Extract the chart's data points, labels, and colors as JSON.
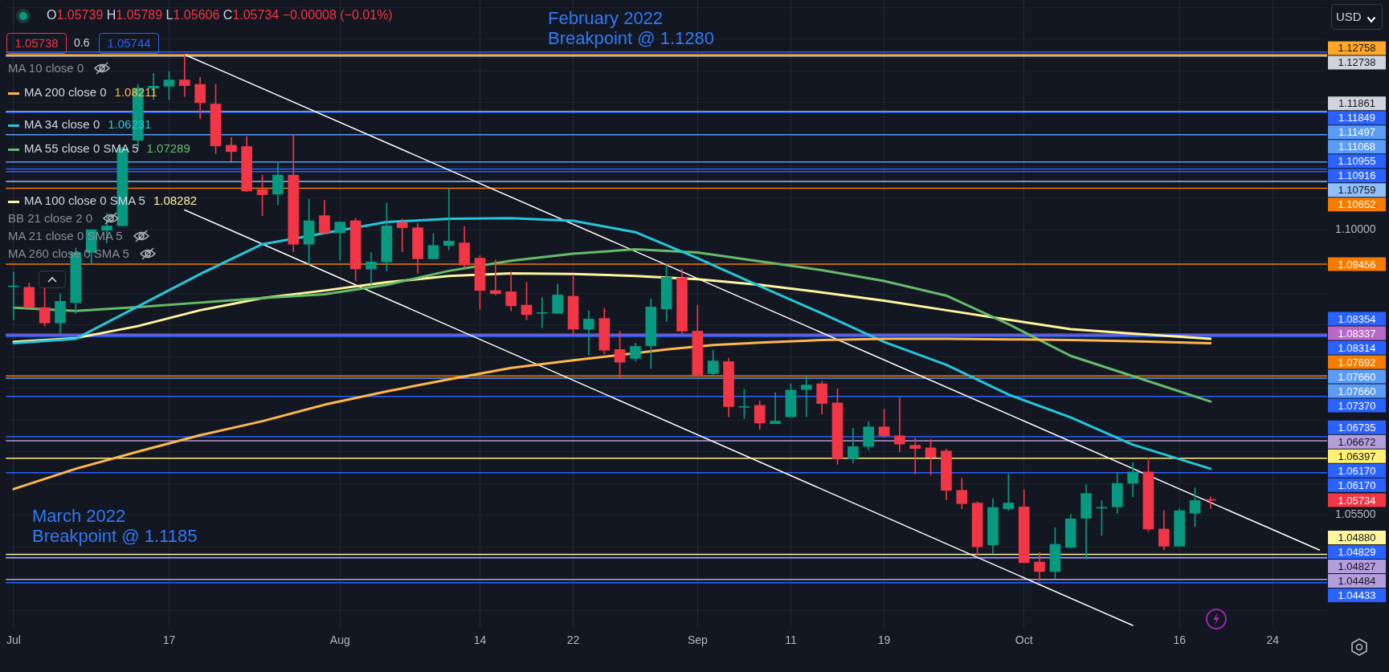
{
  "chart_data": {
    "type": "candlestick",
    "subtitle": "O1.05739 H1.05789 L1.05606 C1.05734 −0.00008 (−0.01%)",
    "categories": [
      "Jul",
      null,
      null,
      null,
      null,
      null,
      null,
      null,
      null,
      null,
      "17",
      null,
      null,
      null,
      null,
      null,
      null,
      null,
      null,
      null,
      null,
      "Aug",
      null,
      null,
      null,
      null,
      null,
      null,
      null,
      null,
      "14",
      null,
      null,
      null,
      null,
      null,
      "22",
      null,
      null,
      null,
      null,
      null,
      null,
      null,
      "Sep",
      null,
      null,
      null,
      null,
      null,
      "11",
      null,
      null,
      null,
      null,
      null,
      "19",
      null,
      null,
      null,
      null,
      null,
      null,
      null,
      null,
      "Oct",
      null,
      null,
      null,
      null,
      null,
      null,
      null,
      null,
      null,
      "16",
      null,
      null,
      null,
      null,
      null,
      "24",
      null,
      null,
      null
    ],
    "ohlc": [
      [
        1.091,
        1.0933,
        1.0858,
        1.0911
      ],
      [
        1.0909,
        1.0916,
        1.0877,
        1.0877
      ],
      [
        1.0877,
        1.0908,
        1.0848,
        1.0853
      ],
      [
        1.0853,
        1.0899,
        1.0836,
        1.0887
      ],
      [
        1.0885,
        1.0971,
        1.0868,
        1.0964
      ],
      [
        1.0964,
        1.1,
        1.0945,
        1.1
      ],
      [
        1.0999,
        1.1026,
        1.0979,
        1.1006
      ],
      [
        1.1006,
        1.113,
        1.1006,
        1.1128
      ],
      [
        1.1141,
        1.1229,
        1.1128,
        1.1223
      ],
      [
        1.1223,
        1.1246,
        1.1205,
        1.1226
      ],
      [
        1.1226,
        1.1249,
        1.1205,
        1.1236
      ],
      [
        1.1236,
        1.1276,
        1.121,
        1.1227
      ],
      [
        1.1229,
        1.124,
        1.1175,
        1.12
      ],
      [
        1.1198,
        1.1229,
        1.112,
        1.1132
      ],
      [
        1.1133,
        1.1145,
        1.1108,
        1.1123
      ],
      [
        1.1131,
        1.1147,
        1.106,
        1.1061
      ],
      [
        1.1063,
        1.1086,
        1.1022,
        1.1055
      ],
      [
        1.1056,
        1.1107,
        1.1039,
        1.1086
      ],
      [
        1.1086,
        1.115,
        1.0965,
        1.0977
      ],
      [
        1.0977,
        1.1048,
        1.0945,
        1.1014
      ],
      [
        1.1022,
        1.1046,
        1.0993,
        1.0995
      ],
      [
        1.0995,
        1.1012,
        1.0952,
        1.1012
      ],
      [
        1.1014,
        1.1018,
        1.0919,
        1.0938
      ],
      [
        1.0938,
        1.0964,
        1.0914,
        1.0949
      ],
      [
        1.0949,
        1.1042,
        1.0935,
        1.1006
      ],
      [
        1.1011,
        1.1017,
        1.0965,
        1.1003
      ],
      [
        1.1003,
        1.101,
        1.0931,
        1.0954
      ],
      [
        1.0954,
        1.0994,
        1.0954,
        1.0975
      ],
      [
        1.0975,
        1.1065,
        1.0968,
        1.0982
      ],
      [
        1.0979,
        1.1005,
        1.094,
        1.0944
      ],
      [
        1.0955,
        1.0959,
        1.0874,
        1.0904
      ],
      [
        1.0904,
        1.0952,
        1.0897,
        1.0899
      ],
      [
        1.0902,
        1.0933,
        1.0872,
        1.088
      ],
      [
        1.0881,
        1.0917,
        1.0858,
        1.0866
      ],
      [
        1.0868,
        1.0893,
        1.0845,
        1.0869
      ],
      [
        1.0868,
        1.0914,
        1.0868,
        1.0897
      ],
      [
        1.0895,
        1.0929,
        1.0833,
        1.0843
      ],
      [
        1.0843,
        1.0872,
        1.0802,
        1.0859
      ],
      [
        1.086,
        1.0876,
        1.0804,
        1.081
      ],
      [
        1.0811,
        1.084,
        1.0766,
        1.0791
      ],
      [
        1.0797,
        1.0821,
        1.0793,
        1.0816
      ],
      [
        1.0817,
        1.0891,
        1.0781,
        1.0878
      ],
      [
        1.0875,
        1.0945,
        1.0855,
        1.0925
      ],
      [
        1.0924,
        1.0938,
        1.0836,
        1.084
      ],
      [
        1.084,
        1.0881,
        1.0771,
        1.0771
      ],
      [
        1.0773,
        1.081,
        1.0771,
        1.0793
      ],
      [
        1.0792,
        1.0797,
        1.0705,
        1.0721
      ],
      [
        1.072,
        1.0748,
        1.0702,
        1.0721
      ],
      [
        1.0723,
        1.073,
        1.0685,
        1.0695
      ],
      [
        1.0694,
        1.0743,
        1.0694,
        1.0698
      ],
      [
        1.0705,
        1.0757,
        1.0705,
        1.0747
      ],
      [
        1.0748,
        1.0768,
        1.0705,
        1.0755
      ],
      [
        1.0757,
        1.0761,
        1.0709,
        1.0726
      ],
      [
        1.0727,
        1.0749,
        1.063,
        1.0639
      ],
      [
        1.0639,
        1.0687,
        1.0632,
        1.0658
      ],
      [
        1.0658,
        1.0697,
        1.0653,
        1.0689
      ],
      [
        1.0689,
        1.0717,
        1.0673,
        1.0675
      ],
      [
        1.0675,
        1.0735,
        1.065,
        1.0662
      ],
      [
        1.066,
        1.0671,
        1.0615,
        1.0655
      ],
      [
        1.0656,
        1.0669,
        1.0613,
        1.0641
      ],
      [
        1.0651,
        1.0654,
        1.0574,
        1.0589
      ],
      [
        1.0589,
        1.0608,
        1.056,
        1.0568
      ],
      [
        1.0569,
        1.0571,
        1.0486,
        1.05
      ],
      [
        1.0503,
        1.0576,
        1.0489,
        1.0562
      ],
      [
        1.056,
        1.0615,
        1.0557,
        1.0569
      ],
      [
        1.0563,
        1.059,
        1.0475,
        1.0475
      ],
      [
        1.0476,
        1.0491,
        1.0446,
        1.0461
      ],
      [
        1.0461,
        1.053,
        1.045,
        1.0504
      ],
      [
        1.0499,
        1.0551,
        1.0498,
        1.0544
      ],
      [
        1.0545,
        1.0598,
        1.0481,
        1.0584
      ],
      [
        1.0561,
        1.0573,
        1.0518,
        1.0562
      ],
      [
        1.0563,
        1.0617,
        1.0553,
        1.06
      ],
      [
        1.06,
        1.0633,
        1.0579,
        1.0618
      ],
      [
        1.0618,
        1.064,
        1.0524,
        1.0528
      ],
      [
        1.0528,
        1.0557,
        1.0495,
        1.0501
      ],
      [
        1.0501,
        1.056,
        1.0501,
        1.0557
      ],
      [
        1.0553,
        1.0593,
        1.0532,
        1.0573
      ],
      [
        1.05739,
        1.05789,
        1.05606,
        1.05734
      ],
      null,
      null,
      null,
      null,
      null,
      null,
      null
    ],
    "colors": [
      "#089981",
      "#f23645",
      "#f23645",
      "#089981",
      "#089981",
      "#089981",
      "#089981",
      "#089981",
      "#089981",
      "#089981",
      "#089981",
      "#f23645",
      "#f23645",
      "#f23645",
      "#f23645",
      "#f23645",
      "#f23645",
      "#089981",
      "#f23645",
      "#089981",
      "#f23645",
      "#089981",
      "#f23645",
      "#089981",
      "#089981",
      "#f23645",
      "#f23645",
      "#089981",
      "#089981",
      "#f23645",
      "#f23645",
      "#f23645",
      "#f23645",
      "#f23645",
      "#089981",
      "#089981",
      "#f23645",
      "#089981",
      "#f23645",
      "#f23645",
      "#089981",
      "#089981",
      "#089981",
      "#f23645",
      "#f23645",
      "#089981",
      "#f23645",
      "#089981",
      "#f23645",
      "#089981",
      "#089981",
      "#089981",
      "#f23645",
      "#f23645",
      "#089981",
      "#089981",
      "#f23645",
      "#f23645",
      "#f23645",
      "#f23645",
      "#f23645",
      "#f23645",
      "#f23645",
      "#089981",
      "#089981",
      "#f23645",
      "#f23645",
      "#089981",
      "#089981",
      "#089981",
      "#089981",
      "#089981",
      "#089981",
      "#f23645",
      "#f23645",
      "#089981",
      "#089981",
      "#f23645",
      null,
      null,
      null,
      null,
      null,
      null,
      null
    ],
    "ylim": [
      1.0372,
      1.1362
    ],
    "yticks": [
      {
        "value": 1.04,
        "label": null
      },
      {
        "value": 1.045,
        "label": null
      },
      {
        "value": 1.05,
        "label": null
      },
      {
        "value": 1.055,
        "label": "1.05500"
      },
      {
        "value": 1.06,
        "label": null
      },
      {
        "value": 1.065,
        "label": null
      },
      {
        "value": 1.07,
        "label": null
      },
      {
        "value": 1.075,
        "label": null
      },
      {
        "value": 1.08,
        "label": null
      },
      {
        "value": 1.085,
        "label": null
      },
      {
        "value": 1.09,
        "label": null
      },
      {
        "value": 1.095,
        "label": null
      },
      {
        "value": 1.1,
        "label": "1.10000"
      },
      {
        "value": 1.105,
        "label": null
      },
      {
        "value": 1.11,
        "label": null
      },
      {
        "value": 1.115,
        "label": null
      },
      {
        "value": 1.12,
        "label": null
      },
      {
        "value": 1.125,
        "label": null
      },
      {
        "value": 1.13,
        "label": null
      },
      {
        "value": 1.135,
        "label": null
      }
    ],
    "grid": true,
    "legend": "top left",
    "series": [
      {
        "type": "line",
        "name": "MA 200 close 0",
        "color": "#ffb74d",
        "values": [
          1.0591,
          null,
          null,
          null,
          1.0623,
          null,
          null,
          null,
          1.065,
          null,
          null,
          null,
          1.0676,
          null,
          null,
          null,
          1.0698,
          null,
          null,
          null,
          1.0724,
          null,
          null,
          null,
          1.0745,
          null,
          null,
          null,
          1.0764,
          null,
          null,
          null,
          1.0782,
          null,
          null,
          null,
          1.0794,
          null,
          null,
          null,
          null,
          null,
          1.0811,
          null,
          null,
          1.0818,
          null,
          null,
          1.0822,
          null,
          null,
          null,
          1.0826,
          null,
          null,
          null,
          1.0828,
          null,
          null,
          null,
          1.0828,
          null,
          null,
          null,
          1.0827,
          null,
          null,
          null,
          1.0826,
          null,
          null,
          null,
          1.0824,
          null,
          null,
          null,
          null,
          1.0821,
          null,
          null,
          null,
          null,
          null,
          null,
          null
        ]
      },
      {
        "type": "line",
        "name": "MA 34 close 0",
        "color": "#26c6da",
        "values": [
          1.0821,
          null,
          null,
          null,
          1.0828,
          null,
          null,
          null,
          1.0879,
          null,
          null,
          null,
          1.093,
          null,
          null,
          null,
          1.0977,
          null,
          null,
          null,
          null,
          null,
          null,
          null,
          1.1012,
          null,
          null,
          null,
          1.1017,
          null,
          null,
          null,
          1.1018,
          null,
          null,
          null,
          1.1014,
          null,
          null,
          null,
          1.0996,
          null,
          null,
          null,
          1.0955,
          null,
          null,
          null,
          1.0911,
          null,
          null,
          null,
          1.0868,
          null,
          null,
          null,
          1.0823,
          null,
          null,
          null,
          1.0787,
          null,
          null,
          null,
          1.074,
          null,
          null,
          null,
          1.0704,
          null,
          null,
          null,
          1.0661,
          null,
          null,
          null,
          null,
          1.0623,
          null,
          null,
          null,
          null,
          null,
          null,
          null
        ]
      },
      {
        "type": "line",
        "name": "MA 55 close 0 SMA 5",
        "color": "#66bb6a",
        "values": [
          1.0877,
          null,
          null,
          null,
          1.0872,
          null,
          null,
          null,
          1.0878,
          null,
          null,
          null,
          1.0885,
          null,
          null,
          null,
          1.0892,
          null,
          null,
          null,
          1.0898,
          null,
          null,
          null,
          1.0913,
          null,
          null,
          null,
          1.0935,
          null,
          null,
          null,
          1.0951,
          null,
          null,
          null,
          1.0962,
          null,
          null,
          null,
          1.0969,
          null,
          null,
          null,
          1.0964,
          null,
          null,
          null,
          1.095,
          null,
          null,
          null,
          1.0936,
          null,
          null,
          null,
          1.0919,
          null,
          null,
          null,
          1.0896,
          null,
          null,
          null,
          1.0851,
          null,
          null,
          null,
          1.0801,
          null,
          null,
          null,
          1.0769,
          null,
          null,
          null,
          null,
          1.0729,
          null,
          null,
          null,
          null,
          null,
          null,
          null
        ]
      },
      {
        "type": "line",
        "name": "MA 100 close 0 SMA 5",
        "color": "#fff59d",
        "values": [
          1.0823,
          null,
          null,
          null,
          1.0829,
          null,
          null,
          null,
          1.0848,
          null,
          null,
          null,
          1.0873,
          null,
          null,
          null,
          1.0892,
          null,
          null,
          null,
          1.0904,
          null,
          null,
          null,
          1.0917,
          null,
          null,
          null,
          1.0927,
          null,
          null,
          null,
          1.0931,
          null,
          null,
          null,
          1.093,
          null,
          null,
          null,
          1.0927,
          null,
          null,
          null,
          1.0922,
          null,
          null,
          null,
          1.0913,
          null,
          null,
          null,
          1.0901,
          null,
          null,
          null,
          1.0888,
          null,
          null,
          null,
          1.0873,
          null,
          null,
          null,
          1.0858,
          null,
          null,
          null,
          1.0843,
          null,
          null,
          null,
          1.0836,
          null,
          null,
          null,
          null,
          1.0828,
          null,
          null,
          null,
          null,
          null,
          null,
          null
        ]
      },
      {
        "type": "line",
        "color": "#ffffff",
        "values": [
          null,
          null,
          null,
          null,
          null,
          null,
          null,
          null,
          null,
          null,
          null,
          1.1276,
          null,
          null,
          null,
          null,
          null,
          null,
          null,
          null,
          null,
          null,
          null,
          null,
          null,
          null,
          null,
          null,
          null,
          null,
          null,
          null,
          null,
          null,
          null,
          null,
          null,
          null,
          null,
          null,
          null,
          null,
          null,
          null,
          null,
          null,
          null,
          null,
          null,
          null,
          null,
          null,
          null,
          null,
          null,
          null,
          null,
          null,
          null,
          null,
          null,
          null,
          null,
          null,
          null,
          null,
          null,
          null,
          null,
          null,
          null,
          null,
          null,
          null,
          null,
          null,
          null,
          null,
          null,
          null,
          null,
          null,
          null,
          null,
          1.0495
        ]
      },
      {
        "type": "line",
        "color": "#ffffff",
        "values": [
          null,
          null,
          null,
          null,
          null,
          null,
          null,
          null,
          null,
          null,
          null,
          1.1031,
          null,
          null,
          null,
          null,
          null,
          null,
          null,
          null,
          null,
          null,
          null,
          null,
          null,
          null,
          null,
          null,
          null,
          null,
          null,
          null,
          null,
          null,
          null,
          null,
          null,
          null,
          null,
          null,
          null,
          null,
          null,
          null,
          null,
          null,
          null,
          null,
          null,
          null,
          null,
          null,
          null,
          null,
          null,
          null,
          null,
          null,
          null,
          null,
          null,
          null,
          null,
          null,
          null,
          null,
          null,
          null,
          null,
          null,
          null,
          null,
          1.0376,
          null,
          null,
          null,
          null,
          null,
          null,
          null,
          null,
          null,
          null,
          null,
          null
        ]
      }
    ],
    "ref_lines": [
      {
        "axis": "y",
        "value": 1.128,
        "color": "#2962ff"
      },
      {
        "axis": "y",
        "value": 1.12758,
        "label": "1.12758",
        "color": "#ffa726"
      },
      {
        "axis": "y",
        "value": 1.12738,
        "label": "1.12738",
        "color": "#d1d4dc"
      },
      {
        "axis": "y",
        "value": 1.11861,
        "label": "1.11861",
        "color": "#d1d4dc"
      },
      {
        "axis": "y",
        "value": 1.11849,
        "label": "1.11849",
        "color": "#2962ff"
      },
      {
        "axis": "y",
        "value": 1.11497,
        "label": "1.11497",
        "color": "#5b9cf6"
      },
      {
        "axis": "y",
        "value": 1.11068,
        "label": "1.11068",
        "color": "#5b9cf6"
      },
      {
        "axis": "y",
        "value": 1.10955,
        "label": "1.10955",
        "color": "#2962ff"
      },
      {
        "axis": "y",
        "value": 1.10916,
        "label": "1.10916",
        "color": "#2962ff"
      },
      {
        "axis": "y",
        "value": 1.10759,
        "label": "1.10759",
        "color": "#90bff9"
      },
      {
        "axis": "y",
        "value": 1.10652,
        "label": "1.10652",
        "color": "#f57c00"
      },
      {
        "axis": "y",
        "value": 1.09456,
        "label": "1.09456",
        "color": "#f57c00"
      },
      {
        "axis": "y",
        "value": 1.08354,
        "label": "1.08354",
        "color": "#2962ff"
      },
      {
        "axis": "y",
        "value": 1.08337,
        "label": "1.08337",
        "color": "#ba68c8"
      },
      {
        "axis": "y",
        "value": 1.08314,
        "label": "1.08314",
        "color": "#2962ff"
      },
      {
        "axis": "y",
        "value": 1.07692,
        "label": "1.07692",
        "color": "#f57c00"
      },
      {
        "axis": "y",
        "value": 1.0766,
        "label": "1.07660",
        "color": "#5b9cf6"
      },
      {
        "axis": "y",
        "value": 1.0737,
        "label": "1.07370",
        "color": "#2962ff"
      },
      {
        "axis": "y",
        "value": 1.06735,
        "label": "1.06735",
        "color": "#2962ff"
      },
      {
        "axis": "y",
        "value": 1.06672,
        "label": "1.06672",
        "color": "#b39ddb"
      },
      {
        "axis": "y",
        "value": 1.06397,
        "label": "1.06397",
        "color": "#fff176"
      },
      {
        "axis": "y",
        "value": 1.0617,
        "label": "1.06170",
        "color": "#2962ff"
      },
      {
        "axis": "y",
        "value": 1.0488,
        "label": "1.04880",
        "color": "#fff59d"
      },
      {
        "axis": "y",
        "value": 1.04829,
        "label": "1.04829",
        "color": "#2962ff"
      },
      {
        "axis": "y",
        "value": 1.04827,
        "label": "1.04827",
        "color": "#b39ddb"
      },
      {
        "axis": "y",
        "value": 1.04484,
        "label": "1.04484",
        "color": "#b39ddb"
      },
      {
        "axis": "y",
        "value": 1.04433,
        "label": "1.04433",
        "color": "#2962ff"
      }
    ],
    "annotations": [
      "February 2022\nBreakpoint @ 1.1280",
      "March 2022\nBreakpoint @ 1.1185",
      "1.05738",
      "0.6",
      "1.05744",
      "USD",
      "MA 10 close 0",
      "BB 21 close 2 0",
      "MA 21 close 0 SMA 5",
      "MA 260 close 0 SMA 5",
      "1.05734",
      "1.08211",
      "1.06231",
      "1.07289",
      "1.08282",
      "1.07660",
      "1.06170"
    ]
  }
}
